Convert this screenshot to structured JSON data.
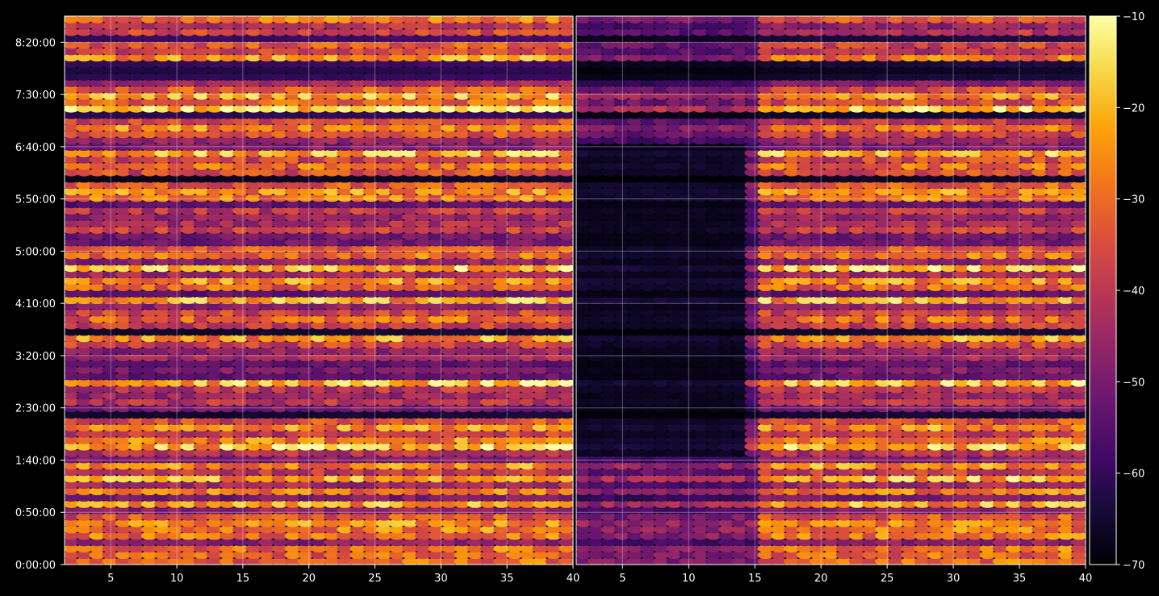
{
  "chart_data": {
    "type": "heatmap",
    "colormap": "inferno",
    "background": "#000000",
    "panels": [
      {
        "name": "left",
        "x_ticks": [
          5,
          10,
          15,
          20,
          25,
          30,
          35,
          40
        ],
        "x_tick_labels": [
          "5",
          "10",
          "15",
          "20",
          "25",
          "30",
          "35",
          "40"
        ],
        "xlim": [
          1.5,
          40
        ],
        "y_tick_labels": [
          "0:00:00",
          "0:50:00",
          "1:40:00",
          "2:30:00",
          "3:20:00",
          "4:10:00",
          "5:00:00",
          "5:50:00",
          "6:40:00",
          "7:30:00",
          "8:20:00"
        ],
        "y_tick_seconds": [
          0,
          3000,
          6000,
          9000,
          12000,
          15000,
          18000,
          21000,
          24000,
          27000,
          30000
        ],
        "ylim_seconds": [
          0,
          31500
        ],
        "dark_region": null
      },
      {
        "name": "right",
        "x_ticks": [
          5,
          10,
          15,
          20,
          25,
          30,
          35,
          40
        ],
        "x_tick_labels": [
          "5",
          "10",
          "15",
          "20",
          "25",
          "30",
          "35",
          "40"
        ],
        "xlim": [
          1.5,
          40
        ],
        "dark_region": {
          "x_range": [
            1.5,
            14
          ],
          "seconds_range": [
            6300,
            24300
          ]
        }
      }
    ],
    "colorbar": {
      "range": [
        -70,
        -10
      ],
      "ticks": [
        -70,
        -60,
        -50,
        -40,
        -30,
        -20,
        -10
      ],
      "tick_labels": [
        "−70",
        "−60",
        "−50",
        "−40",
        "−30",
        "−20",
        "−10"
      ]
    },
    "grid": true
  }
}
